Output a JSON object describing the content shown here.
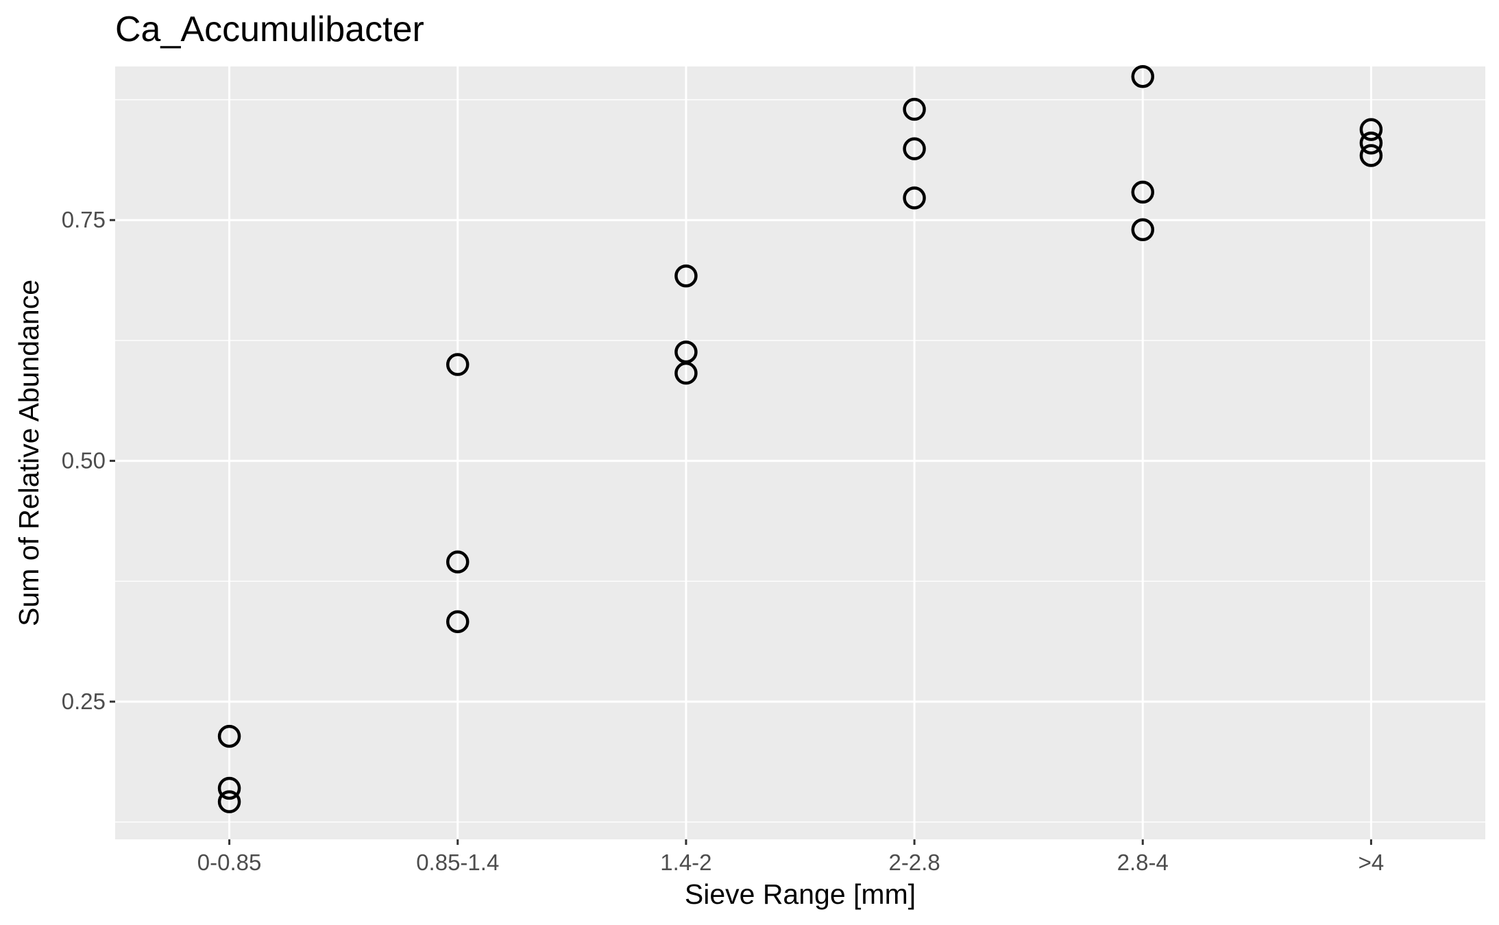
{
  "chart_data": {
    "type": "scatter",
    "title": "Ca_Accumulibacter",
    "xlabel": "Sieve Range [mm]",
    "ylabel": "Sum of Relative Abundance",
    "categories": [
      "0-0.85",
      "0.85-1.4",
      "1.4-2",
      "2-2.8",
      "2.8-4",
      ">4"
    ],
    "y_ticks": [
      0.25,
      0.5,
      0.75
    ],
    "y_tick_labels": [
      "0.25",
      "0.50",
      "0.75"
    ],
    "ylim": [
      0.107,
      0.9095
    ],
    "grid": true,
    "marker": "open-circle",
    "points": [
      {
        "x": "0-0.85",
        "y": 0.214
      },
      {
        "x": "0-0.85",
        "y": 0.16
      },
      {
        "x": "0-0.85",
        "y": 0.146
      },
      {
        "x": "0.85-1.4",
        "y": 0.6
      },
      {
        "x": "0.85-1.4",
        "y": 0.395
      },
      {
        "x": "0.85-1.4",
        "y": 0.333
      },
      {
        "x": "1.4-2",
        "y": 0.692
      },
      {
        "x": "1.4-2",
        "y": 0.613
      },
      {
        "x": "1.4-2",
        "y": 0.591
      },
      {
        "x": "2-2.8",
        "y": 0.865
      },
      {
        "x": "2-2.8",
        "y": 0.824
      },
      {
        "x": "2-2.8",
        "y": 0.773
      },
      {
        "x": "2.8-4",
        "y": 0.899
      },
      {
        "x": "2.8-4",
        "y": 0.779
      },
      {
        "x": "2.8-4",
        "y": 0.74
      },
      {
        "x": ">4",
        "y": 0.844
      },
      {
        "x": ">4",
        "y": 0.83
      },
      {
        "x": ">4",
        "y": 0.817
      }
    ],
    "colors": {
      "panel": "#ebebeb",
      "grid": "#ffffff",
      "marker_stroke": "#000000",
      "tick_label": "#4d4d4d",
      "tick_mark": "#333333"
    }
  }
}
